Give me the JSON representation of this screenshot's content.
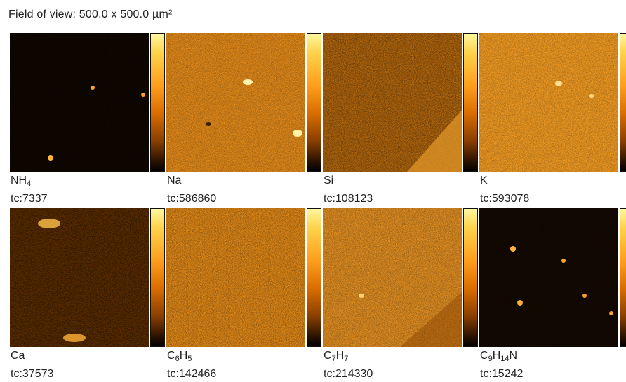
{
  "header": {
    "field_of_view": "Field of view: 500.0 x 500.0 µm²"
  },
  "colormap": [
    "#000000",
    "#3a1a00",
    "#8a4400",
    "#d97a00",
    "#ffa321",
    "#ffd45a",
    "#fff6a8"
  ],
  "panels": [
    {
      "species_html": "NH<sub>4</sub>",
      "tc": "tc:7337",
      "intensity": "low"
    },
    {
      "species_html": "Na",
      "tc": "tc:586860",
      "intensity": "high"
    },
    {
      "species_html": "Si",
      "tc": "tc:108123",
      "intensity": "medium"
    },
    {
      "species_html": "K",
      "tc": "tc:593078",
      "intensity": "high"
    },
    {
      "species_html": "Ca",
      "tc": "tc:37573",
      "intensity": "low-medium"
    },
    {
      "species_html": "C<sub>6</sub>H<sub>5</sub>",
      "tc": "tc:142466",
      "intensity": "medium-high"
    },
    {
      "species_html": "C<sub>7</sub>H<sub>7</sub>",
      "tc": "tc:214330",
      "intensity": "medium-high"
    },
    {
      "species_html": "C<sub>9</sub>H<sub>14</sub>N",
      "tc": "tc:15242",
      "intensity": "low"
    }
  ]
}
